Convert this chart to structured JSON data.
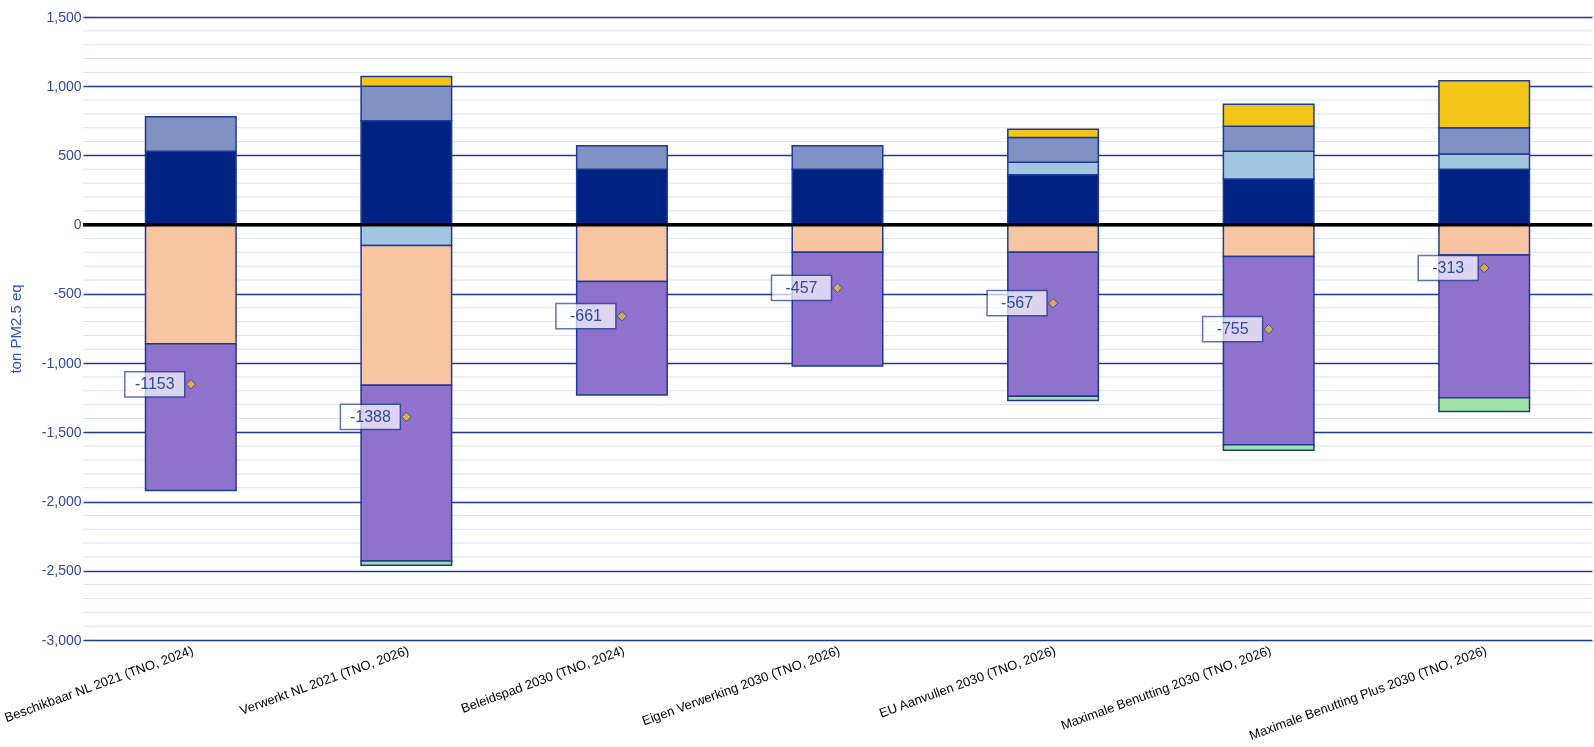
{
  "chart_data": {
    "type": "bar",
    "stacked": true,
    "ylabel": "ton PM2.5 eq",
    "categories": [
      "Beschikbaar NL 2021 (TNO, 2024)",
      "Verwerkt NL 2021 (TNO, 2026)",
      "Beleidspad 2030 (TNO, 2024)",
      "Eigen Verwerking 2030 (TNO, 2026)",
      "EU Aanvullen 2030 (TNO, 2026)",
      "Maximale Benutting 2030 (TNO, 2026)",
      "Maximale Benutting Plus 2030 (TNO, 2026)"
    ],
    "series": [
      {
        "color": "#002283",
        "values": [
          530,
          750,
          400,
          400,
          360,
          330,
          400
        ]
      },
      {
        "color": "#a3c6e0",
        "values": [
          null,
          -150,
          null,
          null,
          90,
          200,
          110
        ]
      },
      {
        "color": "#8091c3",
        "values": [
          250,
          250,
          170,
          170,
          180,
          180,
          190
        ]
      },
      {
        "color": "#f2c618",
        "values": [
          null,
          70,
          null,
          null,
          60,
          160,
          340
        ]
      },
      {
        "color": "#f8c5a2",
        "values": [
          -860,
          -1010,
          -410,
          -200,
          -200,
          -230,
          -220
        ]
      },
      {
        "color": "#8e72cb",
        "values": [
          -1060,
          -1270,
          -820,
          -820,
          -1040,
          -1360,
          -1030
        ]
      },
      {
        "color": "#a2e4a5",
        "values": [
          null,
          -30,
          null,
          null,
          -30,
          -40,
          -100
        ]
      },
      {
        "type": "scatter",
        "color": "#f2c618",
        "values": [
          -1153,
          -1388,
          -661,
          -457,
          -567,
          -755,
          -313
        ],
        "value_labels": [
          "-1153",
          "-1388",
          "-661",
          "-457",
          "-567",
          "-755",
          "-313"
        ]
      }
    ],
    "ylim": [
      -3000,
      1500
    ],
    "yticks": [
      {
        "value": -3000,
        "label": "-3,000"
      },
      {
        "value": -2500,
        "label": "-2,500"
      },
      {
        "value": -2000,
        "label": "-2,000"
      },
      {
        "value": -1500,
        "label": "-1,500"
      },
      {
        "value": -1000,
        "label": "-1,000"
      },
      -500,
      0,
      500,
      {
        "value": 1000,
        "label": "1,000"
      },
      {
        "value": 1500,
        "label": "1,500"
      }
    ],
    "grid": true,
    "marker": "diamond",
    "ref_lines": [
      {
        "axis": "y",
        "value": 0,
        "color": "#000000"
      }
    ]
  }
}
